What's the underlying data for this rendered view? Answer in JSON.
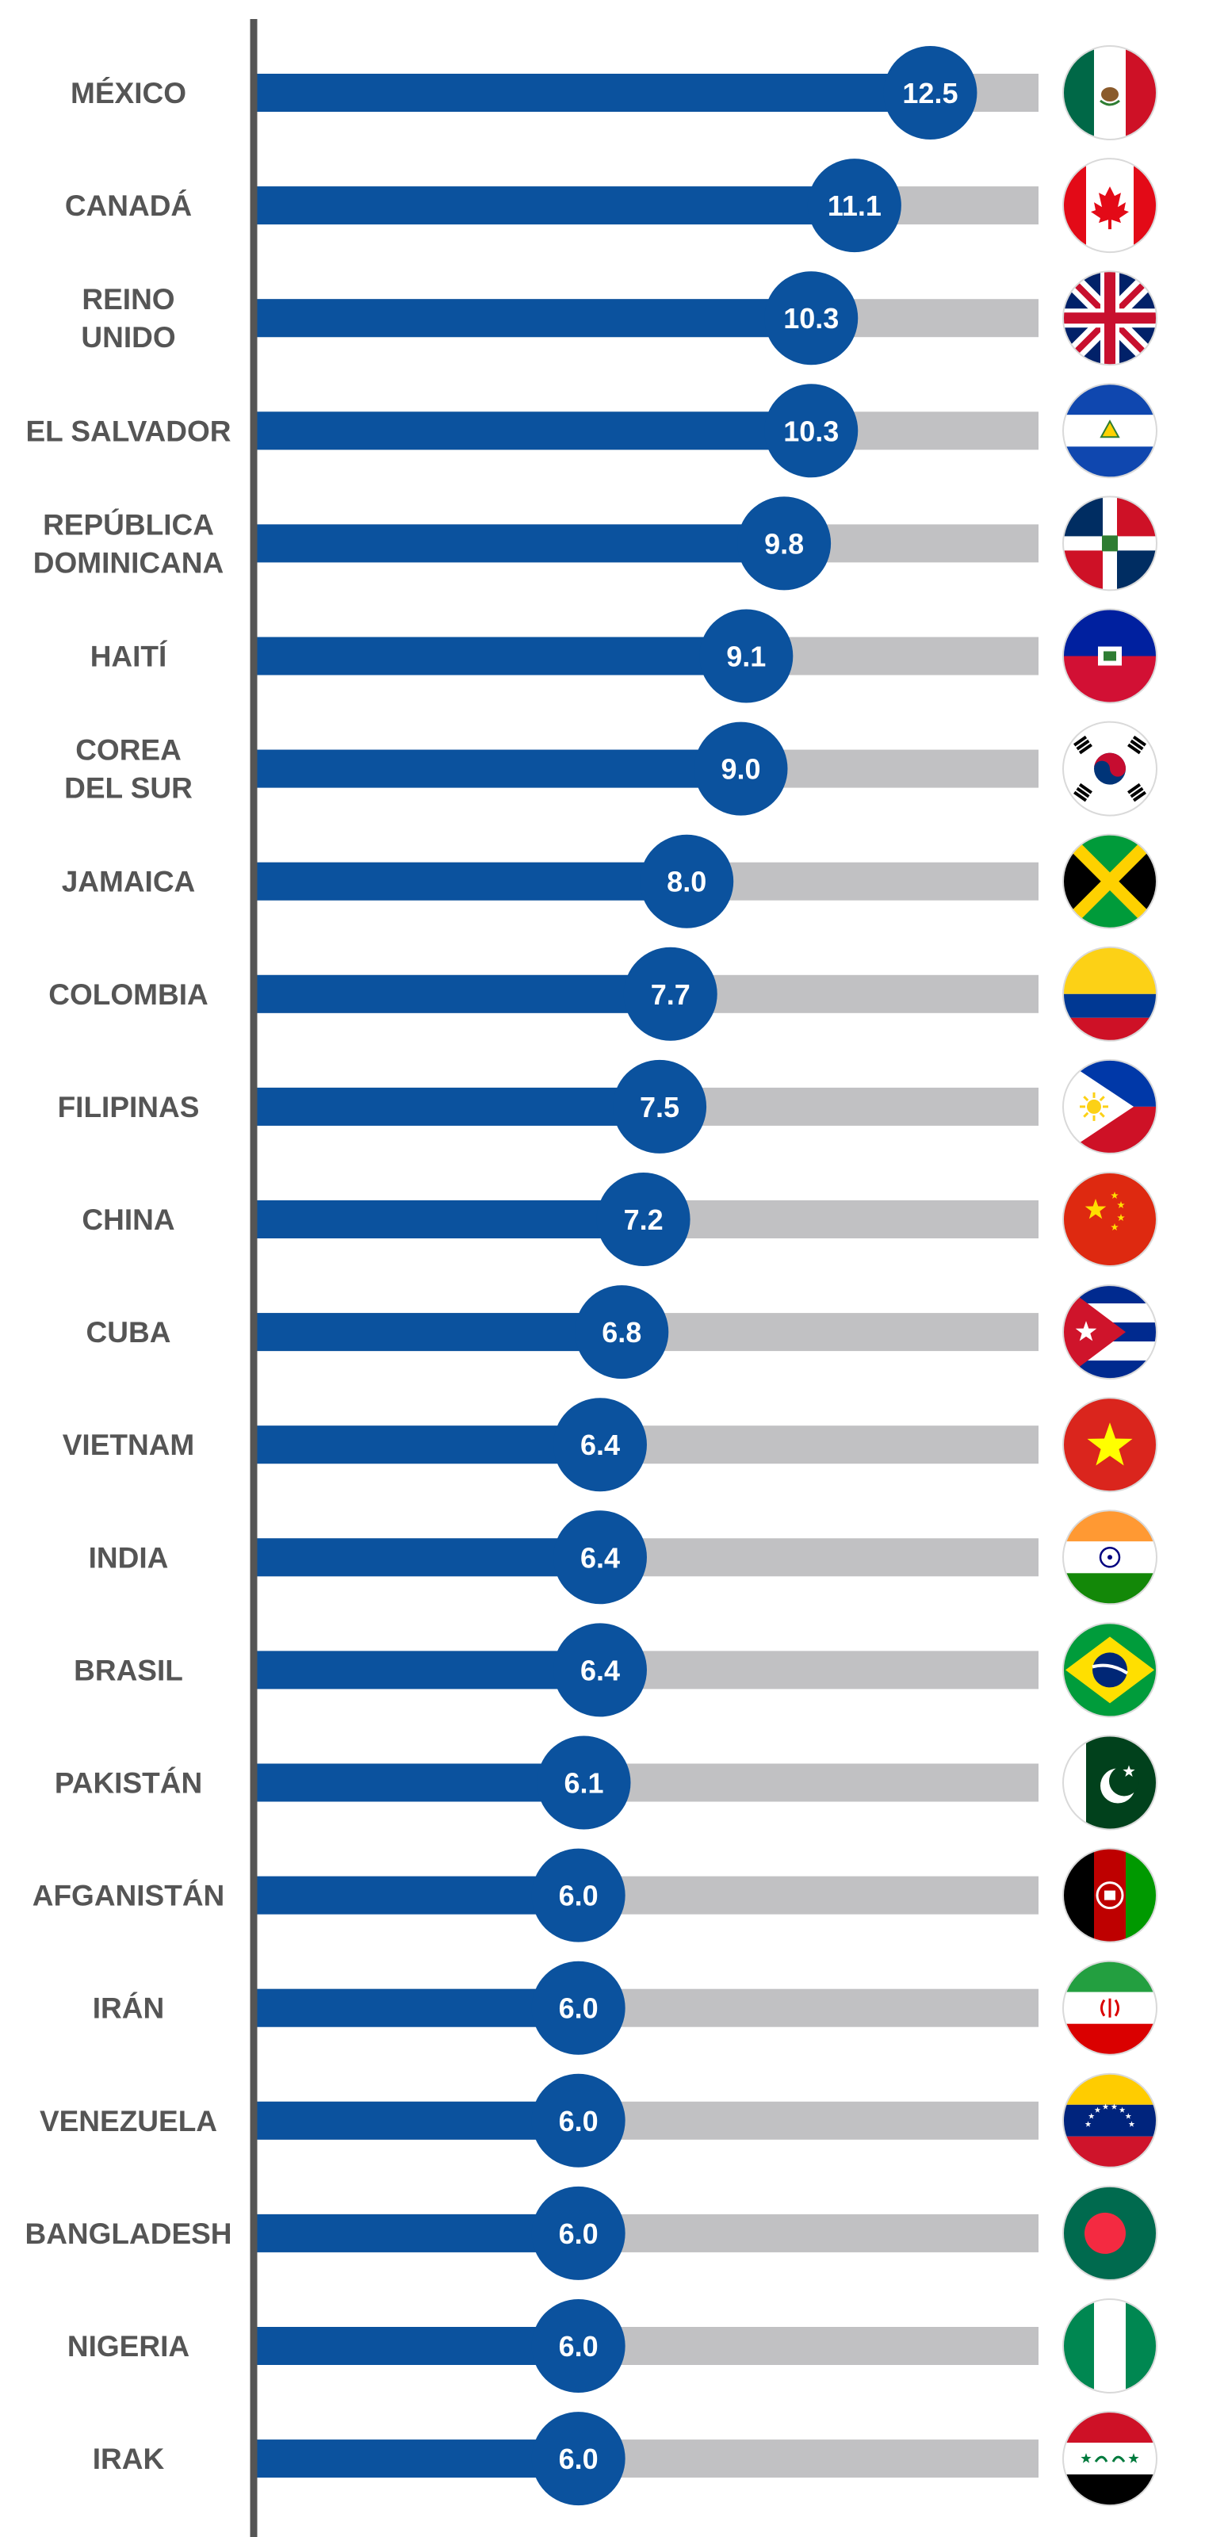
{
  "chart_data": {
    "type": "bar",
    "orientation": "horizontal",
    "title": "",
    "xlabel": "",
    "ylabel": "",
    "xlim": [
      0,
      14.5
    ],
    "grid": false,
    "legend": "none",
    "colors": {
      "bar": "#0b529e",
      "track": "#c1c1c3",
      "axis": "#555555",
      "label": "#555555",
      "value_text": "#ffffff"
    },
    "categories": [
      {
        "lines": [
          "MÉXICO"
        ],
        "flag": "mexico-flag-icon"
      },
      {
        "lines": [
          "CANADÁ"
        ],
        "flag": "canada-flag-icon"
      },
      {
        "lines": [
          "REINO",
          "UNIDO"
        ],
        "flag": "united-kingdom-flag-icon"
      },
      {
        "lines": [
          "EL SALVADOR"
        ],
        "flag": "el-salvador-flag-icon"
      },
      {
        "lines": [
          "REPÚBLICA",
          "DOMINICANA"
        ],
        "flag": "dominican-republic-flag-icon"
      },
      {
        "lines": [
          "HAITÍ"
        ],
        "flag": "haiti-flag-icon"
      },
      {
        "lines": [
          "COREA",
          "DEL SUR"
        ],
        "flag": "south-korea-flag-icon"
      },
      {
        "lines": [
          "JAMAICA"
        ],
        "flag": "jamaica-flag-icon"
      },
      {
        "lines": [
          "COLOMBIA"
        ],
        "flag": "colombia-flag-icon"
      },
      {
        "lines": [
          "FILIPINAS"
        ],
        "flag": "philippines-flag-icon"
      },
      {
        "lines": [
          "CHINA"
        ],
        "flag": "china-flag-icon"
      },
      {
        "lines": [
          "CUBA"
        ],
        "flag": "cuba-flag-icon"
      },
      {
        "lines": [
          "VIETNAM"
        ],
        "flag": "vietnam-flag-icon"
      },
      {
        "lines": [
          "INDIA"
        ],
        "flag": "india-flag-icon"
      },
      {
        "lines": [
          "BRASIL"
        ],
        "flag": "brazil-flag-icon"
      },
      {
        "lines": [
          "PAKISTÁN"
        ],
        "flag": "pakistan-flag-icon"
      },
      {
        "lines": [
          "AFGANISTÁN"
        ],
        "flag": "afghanistan-flag-icon"
      },
      {
        "lines": [
          "IRÁN"
        ],
        "flag": "iran-flag-icon"
      },
      {
        "lines": [
          "VENEZUELA"
        ],
        "flag": "venezuela-flag-icon"
      },
      {
        "lines": [
          "BANGLADESH"
        ],
        "flag": "bangladesh-flag-icon"
      },
      {
        "lines": [
          "NIGERIA"
        ],
        "flag": "nigeria-flag-icon"
      },
      {
        "lines": [
          "IRAK"
        ],
        "flag": "iraq-flag-icon"
      }
    ],
    "values": [
      12.5,
      11.1,
      10.3,
      10.3,
      9.8,
      9.1,
      9.0,
      8.0,
      7.7,
      7.5,
      7.2,
      6.8,
      6.4,
      6.4,
      6.4,
      6.1,
      6.0,
      6.0,
      6.0,
      6.0,
      6.0,
      6.0
    ],
    "value_labels": [
      "12.5",
      "11.1",
      "10.3",
      "10.3",
      "9.8",
      "9.1",
      "9.0",
      "8.0",
      "7.7",
      "7.5",
      "7.2",
      "6.8",
      "6.4",
      "6.4",
      "6.4",
      "6.1",
      "6.0",
      "6.0",
      "6.0",
      "6.0",
      "6.0",
      "6.0"
    ]
  }
}
